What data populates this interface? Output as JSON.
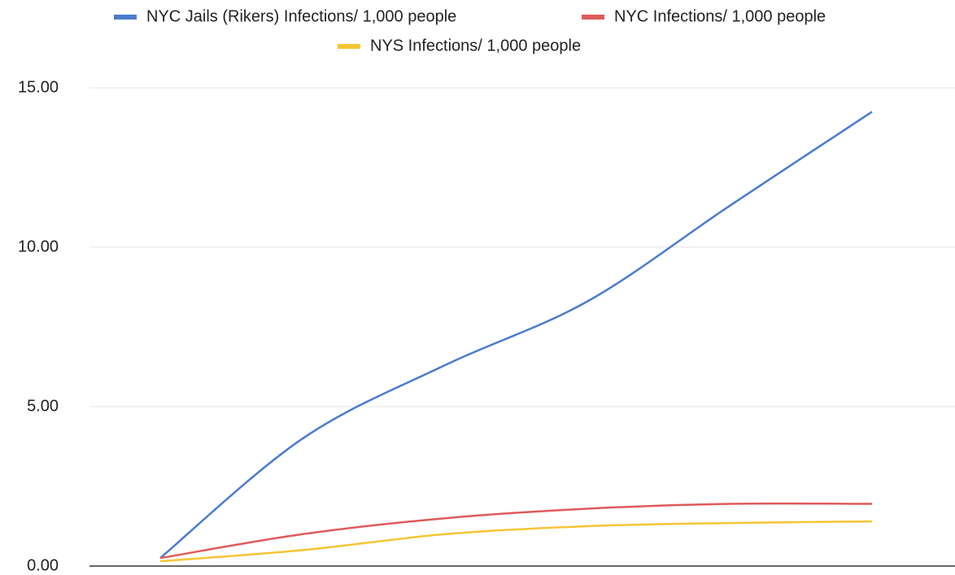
{
  "chart_data": {
    "type": "line",
    "categories": [
      null,
      null,
      null,
      null,
      null,
      null
    ],
    "series": [
      {
        "name": "NYC Jails (Rikers) Infections/ 1,000 people",
        "color": "#4a7bd0",
        "values": [
          0.25,
          4.0,
          6.3,
          8.3,
          11.3,
          14.25
        ]
      },
      {
        "name": "NYC Infections/ 1,000 people",
        "color": "#e05a5a",
        "values": [
          0.25,
          1.0,
          1.5,
          1.8,
          1.95,
          1.95
        ]
      },
      {
        "name": "NYS Infections/ 1,000 people",
        "color": "#f6c533",
        "values": [
          0.15,
          0.5,
          1.0,
          1.25,
          1.35,
          1.4
        ]
      }
    ],
    "ylim": [
      0,
      15
    ],
    "yticks": [
      {
        "value": 0,
        "label": "0.00"
      },
      {
        "value": 5,
        "label": "5.00"
      },
      {
        "value": 10,
        "label": "10.00"
      },
      {
        "value": 15,
        "label": "15.00"
      }
    ],
    "grid": true,
    "legend": "top"
  }
}
